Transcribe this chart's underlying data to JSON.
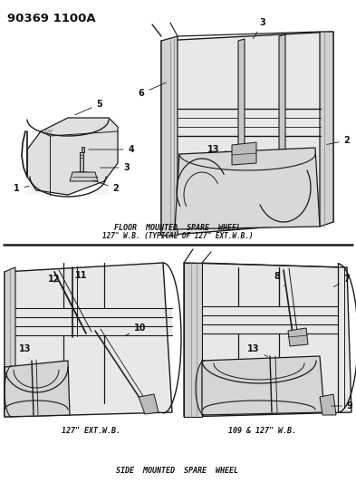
{
  "title_code": "90369 1100A",
  "bg": "#ffffff",
  "lc": "#1a1a1a",
  "tc": "#111111",
  "gray1": "#c8c8c8",
  "gray2": "#aaaaaa",
  "gray3": "#888888",
  "caption1a": "FLOOR  MOUNTED  SPARE  WHEEL",
  "caption1b": "127\" W.B. (TYPICAL OF 127\" EXT.W.B.)",
  "caption2": "SIDE  MOUNTED  SPARE  WHEEL",
  "cap_left": "127\" EXT.W.B.",
  "cap_right": "109 & 127\" W.B.",
  "figsize": [
    3.93,
    5.33
  ],
  "dpi": 100
}
